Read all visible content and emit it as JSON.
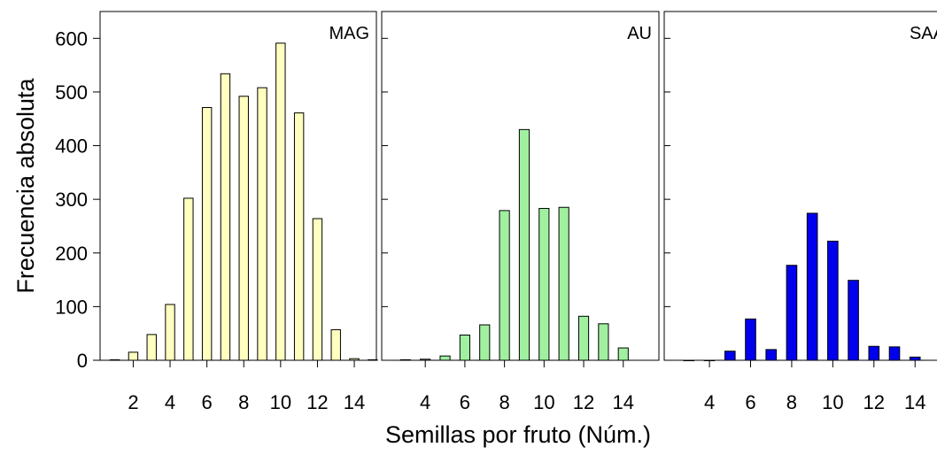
{
  "chart_data": {
    "type": "bar",
    "ylabel": "Frecuencia absoluta",
    "xlabel": "Semillas por fruto (Núm.)",
    "ylim": [
      0,
      650
    ],
    "yticks": [
      0,
      100,
      200,
      300,
      400,
      500,
      600
    ],
    "grid": false,
    "panels": [
      {
        "label": "MAG",
        "color": "#ffffc0",
        "xlim": [
          0.2,
          15.2
        ],
        "xticks": [
          2,
          4,
          6,
          8,
          10,
          12,
          14
        ],
        "x": [
          1,
          2,
          3,
          4,
          5,
          6,
          7,
          8,
          9,
          10,
          11,
          12,
          13,
          14,
          15
        ],
        "values": [
          1,
          15,
          48,
          104,
          302,
          471,
          534,
          492,
          508,
          591,
          461,
          264,
          57,
          3,
          1
        ]
      },
      {
        "label": "AU",
        "color": "#a0f0a0",
        "xlim": [
          1.8,
          15.8
        ],
        "xticks": [
          4,
          6,
          8,
          10,
          12,
          14
        ],
        "x": [
          3,
          4,
          5,
          6,
          7,
          8,
          9,
          10,
          11,
          12,
          13,
          14
        ],
        "values": [
          1,
          2,
          8,
          47,
          66,
          279,
          430,
          283,
          285,
          82,
          68,
          23
        ]
      },
      {
        "label": "SAA",
        "color": "#0000ee",
        "xlim": [
          1.8,
          15.8
        ],
        "xticks": [
          4,
          6,
          8,
          10,
          12,
          14
        ],
        "x": [
          3,
          4,
          5,
          6,
          7,
          8,
          9,
          10,
          11,
          12,
          13,
          14
        ],
        "values": [
          0,
          0,
          17,
          77,
          20,
          177,
          274,
          222,
          149,
          26,
          25,
          6
        ]
      }
    ]
  }
}
